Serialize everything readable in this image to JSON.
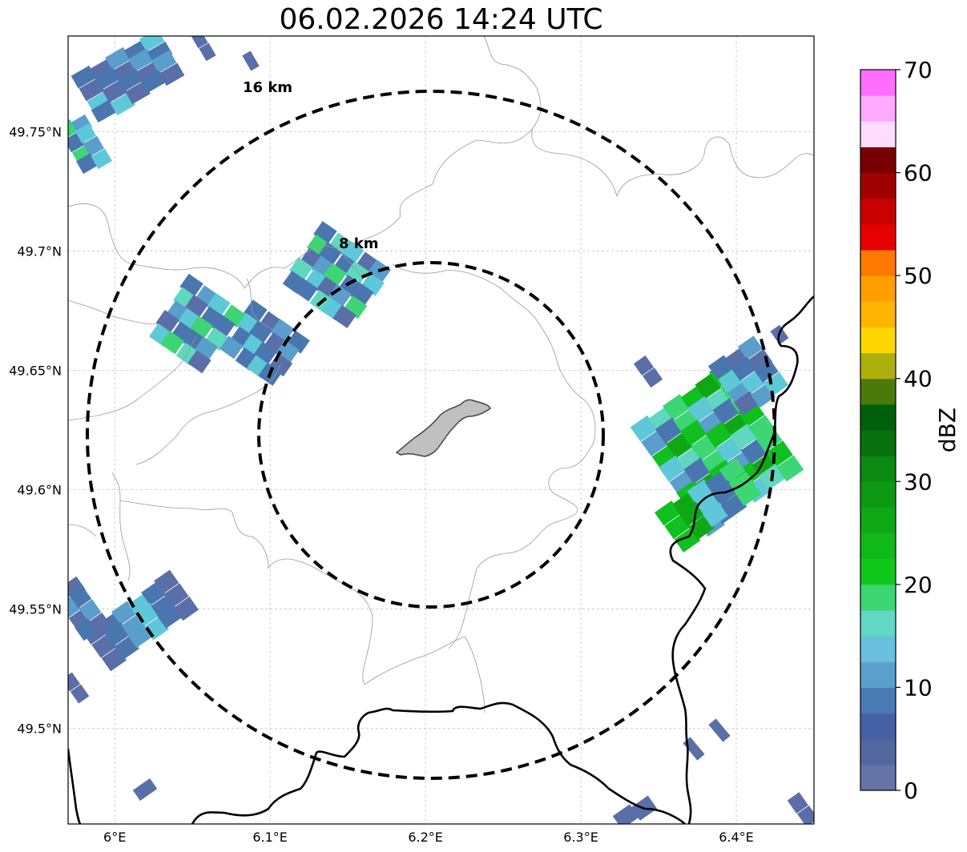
{
  "title": "06.02.2026 14:24 UTC",
  "map": {
    "lon_range": [
      5.97,
      6.45
    ],
    "lat_range": [
      49.46,
      49.79
    ],
    "gridlines": true,
    "lon_ticks": [
      {
        "value": 6.0,
        "label": "6°E"
      },
      {
        "value": 6.1,
        "label": "6.1°E"
      },
      {
        "value": 6.2,
        "label": "6.2°E"
      },
      {
        "value": 6.3,
        "label": "6.3°E"
      },
      {
        "value": 6.4,
        "label": "6.4°E"
      }
    ],
    "lat_ticks": [
      {
        "value": 49.75,
        "label": "49.75°N"
      },
      {
        "value": 49.7,
        "label": "49.7°N"
      },
      {
        "value": 49.65,
        "label": "49.65°N"
      },
      {
        "value": 49.6,
        "label": "49.6°N"
      },
      {
        "value": 49.55,
        "label": "49.55°N"
      },
      {
        "value": 49.5,
        "label": "49.5°N"
      }
    ],
    "range_rings": [
      {
        "label": "8 km"
      },
      {
        "label": "16 km"
      }
    ],
    "center": {
      "lon": 6.203,
      "lat": 49.623
    }
  },
  "colorbar": {
    "label": "dBZ",
    "ticks": [
      "0",
      "10",
      "20",
      "30",
      "40",
      "50",
      "60",
      "70"
    ],
    "colors": [
      "#6474a8",
      "#52679e",
      "#4660a6",
      "#4a7ab3",
      "#5ba0cc",
      "#68c0de",
      "#60d8c4",
      "#3cd675",
      "#10c81c",
      "#10b818",
      "#0ea815",
      "#0c9a13",
      "#0a8a10",
      "#07720d",
      "#005f0a",
      "#4a7a0a",
      "#adb00a",
      "#ffd700",
      "#ffb400",
      "#ff9e00",
      "#ff7800",
      "#e60000",
      "#c80000",
      "#a00000",
      "#780000",
      "#ffdcff",
      "#ffaaff",
      "#ff6eff",
      "#f032f0"
    ]
  },
  "cell_colors": {
    "light": "#5a6ea8",
    "blue": "#4a76b0",
    "mid": "#5a9ecc",
    "cyan": "#5ec8d8",
    "teal": "#60d8c0",
    "lgreen": "#3cd675",
    "green": "#10c020",
    "dgreen": "#0ea815"
  }
}
